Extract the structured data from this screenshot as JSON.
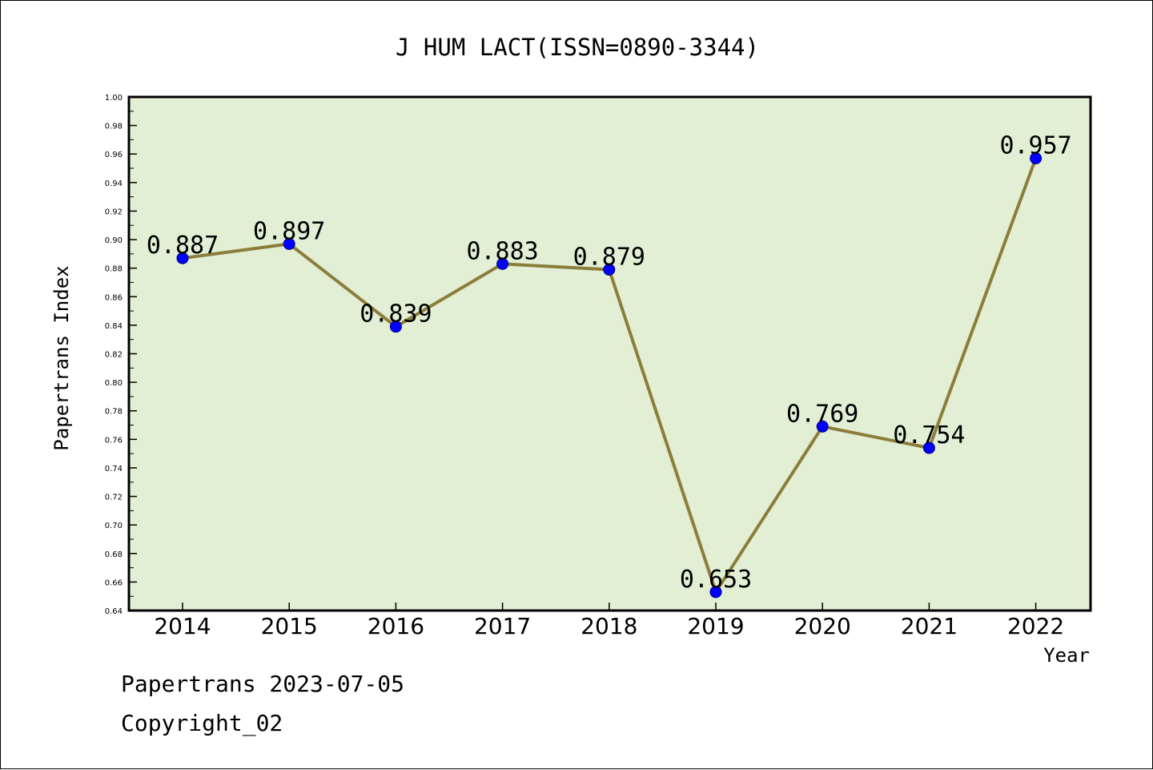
{
  "chart_data": {
    "type": "line",
    "title": "J HUM LACT(ISSN=0890-3344)",
    "xlabel": "Year",
    "ylabel": "Papertrans Index",
    "categories": [
      "2014",
      "2015",
      "2016",
      "2017",
      "2018",
      "2019",
      "2020",
      "2021",
      "2022"
    ],
    "values": [
      0.887,
      0.897,
      0.839,
      0.883,
      0.879,
      0.653,
      0.769,
      0.754,
      0.957
    ],
    "data_labels": [
      "0.887",
      "0.897",
      "0.839",
      "0.883",
      "0.879",
      "0.653",
      "0.769",
      "0.754",
      "0.957"
    ],
    "ylim": [
      0.64,
      1.0
    ],
    "yticks": [
      "0.64",
      "0.66",
      "0.68",
      "0.70",
      "0.72",
      "0.74",
      "0.76",
      "0.78",
      "0.80",
      "0.82",
      "0.84",
      "0.86",
      "0.88",
      "0.90",
      "0.92",
      "0.94",
      "0.96",
      "0.98",
      "1.00"
    ],
    "grid": false,
    "colors": {
      "plot_background": "#e2efd5",
      "line": "#8b7d3a",
      "marker": "#0000ff"
    }
  },
  "footer": {
    "date_text": "Papertrans 2023-07-05",
    "copyright_text": "Copyright_02"
  }
}
